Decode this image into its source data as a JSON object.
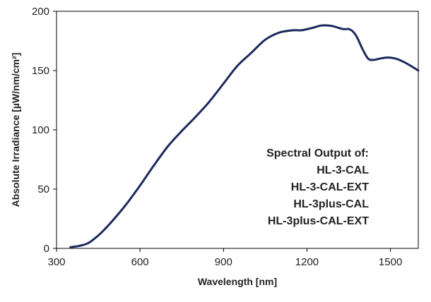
{
  "chart_data": {
    "type": "line",
    "xlabel": "Wavelength [nm]",
    "ylabel": "Absolute Irradiance [µW/nm/cm²]",
    "xlim": [
      300,
      1600
    ],
    "ylim": [
      0,
      200
    ],
    "x_ticks": [
      300,
      600,
      900,
      1200,
      1500
    ],
    "y_ticks": [
      0,
      50,
      100,
      150,
      200
    ],
    "grid": false,
    "line_color": "#1b2a5c",
    "annotation_lines": [
      "Spectral Output of:",
      "HL-3-CAL",
      "HL-3-CAL-EXT",
      "HL-3plus-CAL",
      "HL-3plus-CAL-EXT"
    ],
    "series": [
      {
        "x": [
          350,
          380,
          410,
          430,
          460,
          500,
          550,
          600,
          650,
          700,
          750,
          800,
          850,
          900,
          950,
          1000,
          1050,
          1100,
          1150,
          1180,
          1220,
          1250,
          1280,
          1300,
          1330,
          1350,
          1365,
          1380,
          1400,
          1420,
          1440,
          1460,
          1490,
          1520,
          1550,
          1580,
          1600
        ],
        "y": [
          1,
          2,
          4,
          7,
          13,
          23,
          37,
          53,
          70,
          86,
          99,
          111,
          124,
          139,
          154,
          165,
          176,
          182,
          184,
          184,
          186,
          188,
          188,
          187,
          185,
          185,
          183,
          178,
          168,
          160,
          159,
          160,
          161,
          160,
          157,
          153,
          150
        ]
      }
    ]
  }
}
